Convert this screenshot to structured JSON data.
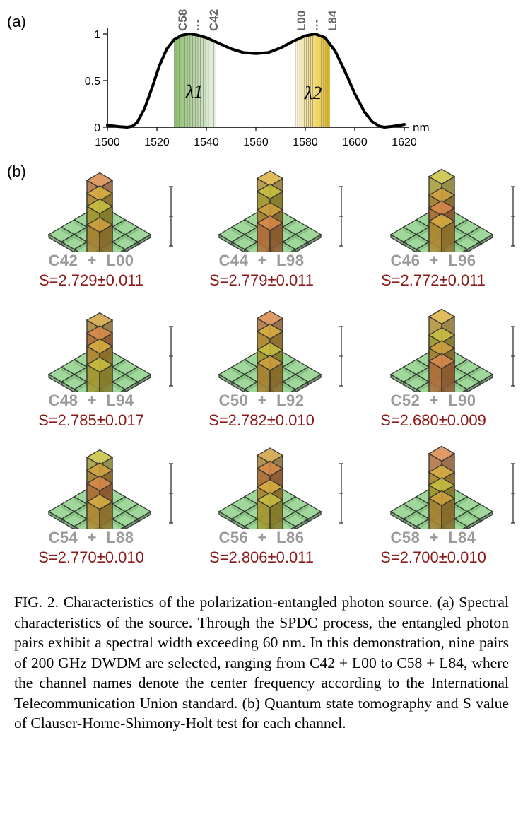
{
  "panel_a_label": "(a)",
  "panel_b_label": "(b)",
  "chart_data": {
    "type": "line",
    "xlabel": "nm",
    "ylabel": "",
    "xlim": [
      1500,
      1620
    ],
    "ylim": [
      0,
      1
    ],
    "x_ticks": [
      "1500",
      "1520",
      "1540",
      "1560",
      "1580",
      "1600",
      "1620"
    ],
    "y_ticks": [
      "0",
      "0.5",
      "1"
    ],
    "grid": false,
    "series": [
      {
        "x": [
          1500,
          1505,
          1508,
          1510,
          1512,
          1515,
          1518,
          1521,
          1524,
          1527,
          1530,
          1533,
          1536,
          1540,
          1545,
          1550,
          1555,
          1560,
          1565,
          1570,
          1575,
          1580,
          1584,
          1588,
          1592,
          1596,
          1600,
          1604,
          1607,
          1610,
          1612,
          1614,
          1618,
          1620
        ],
        "y": [
          0.02,
          0.005,
          0.0,
          0.01,
          0.05,
          0.2,
          0.42,
          0.66,
          0.84,
          0.94,
          0.985,
          1.0,
          0.99,
          0.96,
          0.9,
          0.84,
          0.8,
          0.79,
          0.8,
          0.85,
          0.92,
          0.98,
          1.0,
          0.96,
          0.82,
          0.6,
          0.36,
          0.16,
          0.06,
          0.01,
          0.0,
          0.005,
          0.02,
          0.03
        ]
      }
    ],
    "bands": [
      {
        "label": "λ1",
        "range": [
          1527,
          1544
        ],
        "color": "#8fc070"
      },
      {
        "label": "λ2",
        "range": [
          1576,
          1590
        ],
        "color": "#e8c020"
      }
    ],
    "channel_labels": {
      "left": [
        "C58",
        "···",
        "C42"
      ],
      "right": [
        "L00",
        "···",
        "L84"
      ]
    },
    "band_labels": [
      "λ1",
      "λ2"
    ]
  },
  "tomography": [
    {
      "pair": "C42  +  L00",
      "s": "S=2.729±0.011"
    },
    {
      "pair": "C44  +  L98",
      "s": "S=2.779±0.011"
    },
    {
      "pair": "C46  +  L96",
      "s": "S=2.772±0.011"
    },
    {
      "pair": "C48  +  L94",
      "s": "S=2.785±0.017"
    },
    {
      "pair": "C50  +  L92",
      "s": "S=2.782±0.010"
    },
    {
      "pair": "C52  +  L90",
      "s": "S=2.680±0.009"
    },
    {
      "pair": "C54  +  L88",
      "s": "S=2.770±0.010"
    },
    {
      "pair": "C56  +  L86",
      "s": "S=2.806±0.011"
    },
    {
      "pair": "C58  +  L84",
      "s": "S=2.700±0.010"
    }
  ],
  "caption": "FIG. 2.  Characteristics of the polarization-entangled photon source. (a) Spectral characteristics of the source. Through the SPDC process, the entangled photon pairs exhibit a spectral width exceeding 60 nm. In this demonstration, nine pairs of 200 GHz DWDM are selected, ranging from C42 + L00 to C58 + L84, where the channel names denote the center frequency according to the International Telecommunication Union standard. (b) Quantum state tomography and S value of Clauser-Horne-Shimony-Holt test for each channel."
}
